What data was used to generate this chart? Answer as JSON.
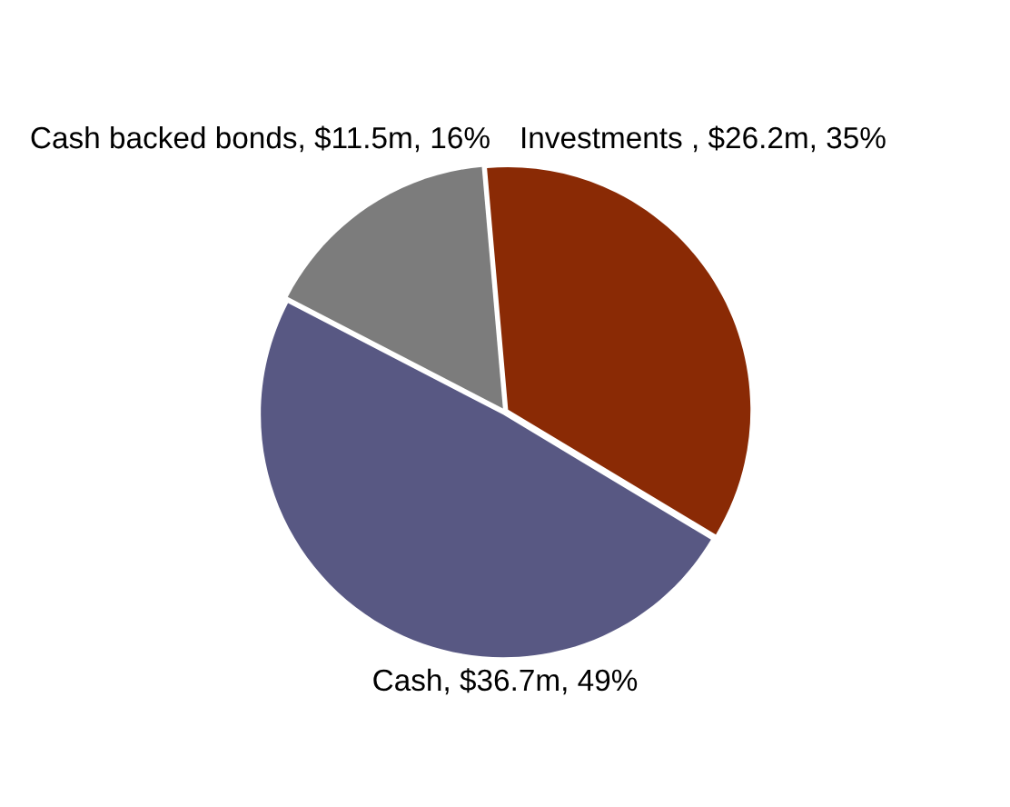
{
  "chart_data": {
    "type": "pie",
    "categories": [
      "Investments ",
      "Cash",
      "Cash backed bonds"
    ],
    "values": [
      35,
      49,
      16
    ],
    "value_labels": [
      "$26.2m, 35%",
      "$36.7m, 49%",
      "$11.5m, 16%"
    ],
    "colors": [
      "#8a2a05",
      "#585883",
      "#7c7c7c"
    ]
  }
}
